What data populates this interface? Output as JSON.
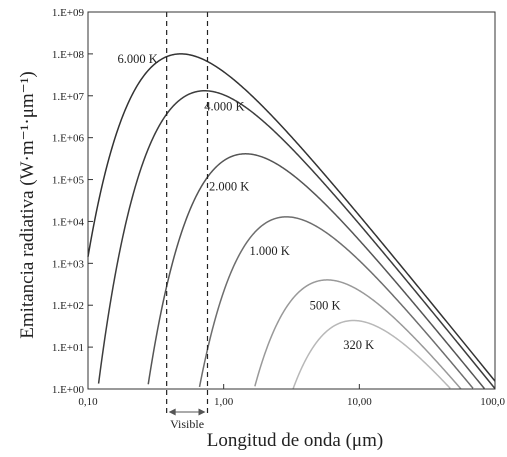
{
  "chart_data": {
    "type": "line",
    "xlabel": "Longitud de onda (μm)",
    "ylabel": "Emitancia radiativa (W·m⁻¹·μm⁻¹)",
    "x_scale": "log",
    "y_scale": "log",
    "xlim": [
      0.1,
      100
    ],
    "ylim": [
      1,
      1000000000
    ],
    "x_ticks": [
      {
        "value": 0.1,
        "label": "0,10"
      },
      {
        "value": 1,
        "label": "1,00"
      },
      {
        "value": 10,
        "label": "10,00"
      },
      {
        "value": 100,
        "label": "100,0"
      }
    ],
    "y_ticks": [
      {
        "value": 1,
        "label": "1.E+00"
      },
      {
        "value": 10,
        "label": "1.E+01"
      },
      {
        "value": 100,
        "label": "1.E+02"
      },
      {
        "value": 1000,
        "label": "1.E+03"
      },
      {
        "value": 10000,
        "label": "1.E+04"
      },
      {
        "value": 100000,
        "label": "1.E+05"
      },
      {
        "value": 1000000,
        "label": "1.E+06"
      },
      {
        "value": 10000000,
        "label": "1.E+07"
      },
      {
        "value": 100000000,
        "label": "1.E+08"
      },
      {
        "value": 1000000000,
        "label": "1.E+09"
      }
    ],
    "grid": false,
    "series": [
      {
        "name": "6.000 K",
        "temperature_K": 6000,
        "color": "#333333",
        "label_at": [
          0.165,
          60000000
        ]
      },
      {
        "name": "4.000 K",
        "temperature_K": 4000,
        "color": "#3d3d3d",
        "label_at": [
          0.72,
          4500000
        ]
      },
      {
        "name": "2.000 K",
        "temperature_K": 2000,
        "color": "#555555",
        "label_at": [
          0.78,
          55000
        ]
      },
      {
        "name": "1.000 K",
        "temperature_K": 1000,
        "color": "#6e6e6e",
        "label_at": [
          1.55,
          1600
        ]
      },
      {
        "name": "500 K",
        "temperature_K": 500,
        "color": "#999999",
        "label_at": [
          4.3,
          80
        ]
      },
      {
        "name": "320 K",
        "temperature_K": 320,
        "color": "#b8b8b8",
        "label_at": [
          7.6,
          9
        ]
      }
    ],
    "visible_band": {
      "label": "Visible",
      "range": [
        0.38,
        0.76
      ]
    }
  }
}
